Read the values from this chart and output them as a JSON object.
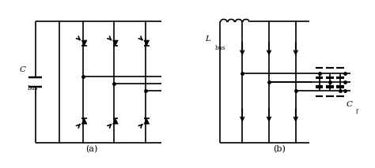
{
  "bg_color": "#ffffff",
  "line_color": "#000000",
  "lw": 1.2,
  "fig_width": 4.74,
  "fig_height": 2.13,
  "label_a": "(a)",
  "label_b": "(b)",
  "cbus_label": "C",
  "cbus_sub": "bus",
  "lbus_label": "L",
  "lbus_sub": "bus",
  "cf_label": "C",
  "cf_sub": "f"
}
